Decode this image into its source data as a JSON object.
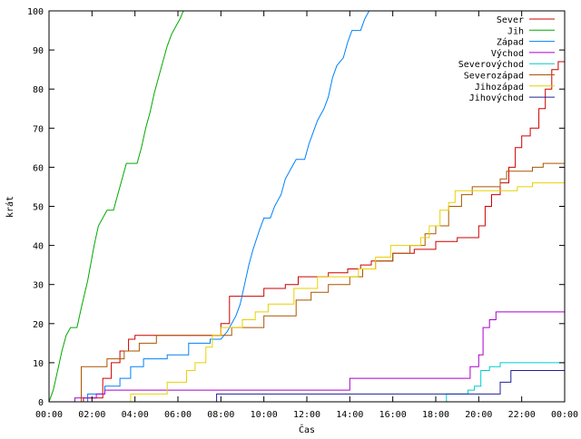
{
  "chart_data": {
    "type": "line",
    "xlabel": "Čas",
    "ylabel": "krát",
    "xlim": [
      0,
      24
    ],
    "ylim": [
      0,
      100
    ],
    "x_ticks": [
      {
        "value": 0,
        "label": "00:00"
      },
      {
        "value": 2,
        "label": "02:00"
      },
      {
        "value": 4,
        "label": "04:00"
      },
      {
        "value": 6,
        "label": "06:00"
      },
      {
        "value": 8,
        "label": "08:00"
      },
      {
        "value": 10,
        "label": "10:00"
      },
      {
        "value": 12,
        "label": "12:00"
      },
      {
        "value": 14,
        "label": "14:00"
      },
      {
        "value": 16,
        "label": "16:00"
      },
      {
        "value": 18,
        "label": "18:00"
      },
      {
        "value": 20,
        "label": "20:00"
      },
      {
        "value": 22,
        "label": "22:00"
      },
      {
        "value": 24,
        "label": "00:00"
      }
    ],
    "y_ticks": [
      0,
      10,
      20,
      30,
      40,
      50,
      60,
      70,
      80,
      90,
      100
    ],
    "grid": false,
    "legend_position": "top-right",
    "series": [
      {
        "name": "Sever",
        "color": "#cc0000",
        "points": [
          [
            1.6,
            0
          ],
          [
            1.6,
            1
          ],
          [
            2.5,
            1
          ],
          [
            2.5,
            6
          ],
          [
            2.9,
            6
          ],
          [
            2.9,
            10
          ],
          [
            3.3,
            10
          ],
          [
            3.3,
            13
          ],
          [
            3.7,
            13
          ],
          [
            3.7,
            16
          ],
          [
            4.0,
            16
          ],
          [
            4.0,
            17
          ],
          [
            8.0,
            17
          ],
          [
            8.0,
            20
          ],
          [
            8.4,
            20
          ],
          [
            8.4,
            27
          ],
          [
            10.0,
            27
          ],
          [
            10.0,
            29
          ],
          [
            11.0,
            29
          ],
          [
            11.0,
            30
          ],
          [
            11.6,
            30
          ],
          [
            11.6,
            32
          ],
          [
            13.0,
            32
          ],
          [
            13.0,
            33
          ],
          [
            13.9,
            33
          ],
          [
            13.9,
            34
          ],
          [
            14.5,
            34
          ],
          [
            14.5,
            35
          ],
          [
            15.0,
            35
          ],
          [
            15.0,
            36
          ],
          [
            16.0,
            36
          ],
          [
            16.0,
            38
          ],
          [
            17.0,
            38
          ],
          [
            17.0,
            39
          ],
          [
            18.0,
            39
          ],
          [
            18.0,
            41
          ],
          [
            19.0,
            41
          ],
          [
            19.0,
            42
          ],
          [
            20.0,
            42
          ],
          [
            20.0,
            45
          ],
          [
            20.3,
            45
          ],
          [
            20.3,
            50
          ],
          [
            20.6,
            50
          ],
          [
            20.6,
            53
          ],
          [
            21.0,
            53
          ],
          [
            21.0,
            56
          ],
          [
            21.4,
            56
          ],
          [
            21.4,
            60
          ],
          [
            21.7,
            60
          ],
          [
            21.7,
            65
          ],
          [
            22.0,
            65
          ],
          [
            22.0,
            68
          ],
          [
            22.4,
            68
          ],
          [
            22.4,
            70
          ],
          [
            22.8,
            70
          ],
          [
            22.8,
            75
          ],
          [
            23.1,
            75
          ],
          [
            23.1,
            80
          ],
          [
            23.4,
            80
          ],
          [
            23.4,
            85
          ],
          [
            23.7,
            85
          ],
          [
            23.7,
            87
          ],
          [
            24,
            87
          ]
        ]
      },
      {
        "name": "Jih",
        "color": "#00aa00",
        "points": [
          [
            0,
            0
          ],
          [
            0.2,
            3
          ],
          [
            0.4,
            8
          ],
          [
            0.6,
            13
          ],
          [
            0.8,
            17
          ],
          [
            1.0,
            19
          ],
          [
            1.3,
            19
          ],
          [
            1.5,
            24
          ],
          [
            1.8,
            31
          ],
          [
            2.1,
            40
          ],
          [
            2.3,
            45
          ],
          [
            2.5,
            47
          ],
          [
            2.7,
            49
          ],
          [
            3.0,
            49
          ],
          [
            3.2,
            53
          ],
          [
            3.4,
            57
          ],
          [
            3.6,
            61
          ],
          [
            4.1,
            61
          ],
          [
            4.3,
            65
          ],
          [
            4.5,
            70
          ],
          [
            4.7,
            74
          ],
          [
            4.9,
            79
          ],
          [
            5.1,
            83
          ],
          [
            5.3,
            87
          ],
          [
            5.5,
            91
          ],
          [
            5.7,
            94
          ],
          [
            5.9,
            96
          ],
          [
            6.1,
            98
          ],
          [
            6.25,
            100
          ]
        ]
      },
      {
        "name": "Západ",
        "color": "#0080ff",
        "points": [
          [
            1.8,
            0
          ],
          [
            1.8,
            2
          ],
          [
            2.6,
            2
          ],
          [
            2.6,
            4
          ],
          [
            3.3,
            4
          ],
          [
            3.3,
            6
          ],
          [
            3.8,
            6
          ],
          [
            3.8,
            9
          ],
          [
            4.4,
            9
          ],
          [
            4.4,
            11
          ],
          [
            5.5,
            11
          ],
          [
            5.5,
            12
          ],
          [
            6.5,
            12
          ],
          [
            6.5,
            15
          ],
          [
            7.5,
            15
          ],
          [
            7.5,
            16
          ],
          [
            8.0,
            16
          ],
          [
            8.3,
            18
          ],
          [
            8.5,
            20
          ],
          [
            8.7,
            22
          ],
          [
            8.9,
            25
          ],
          [
            9.1,
            30
          ],
          [
            9.3,
            35
          ],
          [
            9.5,
            39
          ],
          [
            9.8,
            44
          ],
          [
            10.0,
            47
          ],
          [
            10.3,
            47
          ],
          [
            10.5,
            50
          ],
          [
            10.8,
            53
          ],
          [
            11.0,
            57
          ],
          [
            11.3,
            60
          ],
          [
            11.5,
            62
          ],
          [
            11.9,
            62
          ],
          [
            12.1,
            66
          ],
          [
            12.3,
            69
          ],
          [
            12.5,
            72
          ],
          [
            12.8,
            75
          ],
          [
            13.0,
            78
          ],
          [
            13.2,
            83
          ],
          [
            13.4,
            86
          ],
          [
            13.7,
            88
          ],
          [
            13.9,
            92
          ],
          [
            14.1,
            95
          ],
          [
            14.5,
            95
          ],
          [
            14.7,
            98
          ],
          [
            14.9,
            100
          ]
        ]
      },
      {
        "name": "Východ",
        "color": "#aa00cc",
        "points": [
          [
            1.2,
            0
          ],
          [
            1.2,
            1
          ],
          [
            2.2,
            1
          ],
          [
            2.2,
            2
          ],
          [
            2.6,
            2
          ],
          [
            2.6,
            3
          ],
          [
            14.0,
            3
          ],
          [
            14.0,
            6
          ],
          [
            19.6,
            6
          ],
          [
            19.6,
            9
          ],
          [
            20.0,
            9
          ],
          [
            20.0,
            12
          ],
          [
            20.2,
            12
          ],
          [
            20.2,
            19
          ],
          [
            20.5,
            19
          ],
          [
            20.5,
            21
          ],
          [
            20.8,
            21
          ],
          [
            20.8,
            23
          ],
          [
            24,
            23
          ]
        ]
      },
      {
        "name": "Severovýchod",
        "color": "#00cccc",
        "points": [
          [
            18.5,
            0
          ],
          [
            18.5,
            2
          ],
          [
            19.5,
            2
          ],
          [
            19.5,
            3
          ],
          [
            19.8,
            3
          ],
          [
            19.8,
            4
          ],
          [
            20.1,
            4
          ],
          [
            20.1,
            8
          ],
          [
            20.5,
            8
          ],
          [
            20.5,
            9
          ],
          [
            21.0,
            9
          ],
          [
            21.0,
            10
          ],
          [
            24,
            10
          ]
        ]
      },
      {
        "name": "Severozápad",
        "color": "#aa5500",
        "points": [
          [
            1.5,
            0
          ],
          [
            1.5,
            9
          ],
          [
            2.7,
            9
          ],
          [
            2.7,
            11
          ],
          [
            3.5,
            11
          ],
          [
            3.5,
            13
          ],
          [
            4.2,
            13
          ],
          [
            4.2,
            15
          ],
          [
            5.0,
            15
          ],
          [
            5.0,
            17
          ],
          [
            8.5,
            17
          ],
          [
            8.5,
            19
          ],
          [
            10.0,
            19
          ],
          [
            10.0,
            22
          ],
          [
            11.5,
            22
          ],
          [
            11.5,
            26
          ],
          [
            12.2,
            26
          ],
          [
            12.2,
            28
          ],
          [
            13.0,
            28
          ],
          [
            13.0,
            30
          ],
          [
            14.0,
            30
          ],
          [
            14.0,
            32
          ],
          [
            14.6,
            32
          ],
          [
            14.6,
            34
          ],
          [
            15.2,
            34
          ],
          [
            15.2,
            36
          ],
          [
            16.0,
            36
          ],
          [
            16.0,
            38
          ],
          [
            16.8,
            38
          ],
          [
            16.8,
            40
          ],
          [
            17.5,
            40
          ],
          [
            17.5,
            43
          ],
          [
            18.0,
            43
          ],
          [
            18.0,
            45
          ],
          [
            18.6,
            45
          ],
          [
            18.6,
            50
          ],
          [
            19.2,
            50
          ],
          [
            19.2,
            53
          ],
          [
            19.7,
            53
          ],
          [
            19.7,
            55
          ],
          [
            21.0,
            55
          ],
          [
            21.0,
            57
          ],
          [
            21.3,
            57
          ],
          [
            21.3,
            59
          ],
          [
            22.5,
            59
          ],
          [
            22.5,
            60
          ],
          [
            23.0,
            60
          ],
          [
            23.0,
            61
          ],
          [
            24,
            61
          ]
        ]
      },
      {
        "name": "Jihozápad",
        "color": "#e6d200",
        "points": [
          [
            3.8,
            0
          ],
          [
            3.8,
            2
          ],
          [
            5.5,
            2
          ],
          [
            5.5,
            5
          ],
          [
            6.4,
            5
          ],
          [
            6.4,
            8
          ],
          [
            6.8,
            8
          ],
          [
            6.8,
            10
          ],
          [
            7.3,
            10
          ],
          [
            7.3,
            14
          ],
          [
            7.6,
            14
          ],
          [
            7.6,
            17
          ],
          [
            8.0,
            17
          ],
          [
            8.0,
            19
          ],
          [
            9.0,
            19
          ],
          [
            9.0,
            21
          ],
          [
            9.6,
            21
          ],
          [
            9.6,
            23
          ],
          [
            10.2,
            23
          ],
          [
            10.2,
            25
          ],
          [
            11.4,
            25
          ],
          [
            11.4,
            29
          ],
          [
            12.5,
            29
          ],
          [
            12.5,
            32
          ],
          [
            14.4,
            32
          ],
          [
            14.4,
            34
          ],
          [
            15.2,
            34
          ],
          [
            15.2,
            37
          ],
          [
            15.9,
            37
          ],
          [
            15.9,
            40
          ],
          [
            17.3,
            40
          ],
          [
            17.3,
            42
          ],
          [
            17.7,
            42
          ],
          [
            17.7,
            45
          ],
          [
            18.2,
            45
          ],
          [
            18.2,
            49
          ],
          [
            18.6,
            49
          ],
          [
            18.6,
            51
          ],
          [
            18.9,
            51
          ],
          [
            18.9,
            54
          ],
          [
            21.8,
            54
          ],
          [
            21.8,
            55
          ],
          [
            22.5,
            55
          ],
          [
            22.5,
            56
          ],
          [
            24,
            56
          ]
        ]
      },
      {
        "name": "Jihovýchod",
        "color": "#20209a",
        "points": [
          [
            7.8,
            0
          ],
          [
            7.8,
            2
          ],
          [
            21.0,
            2
          ],
          [
            21.0,
            5
          ],
          [
            21.5,
            5
          ],
          [
            21.5,
            8
          ],
          [
            24,
            8
          ]
        ]
      }
    ]
  }
}
